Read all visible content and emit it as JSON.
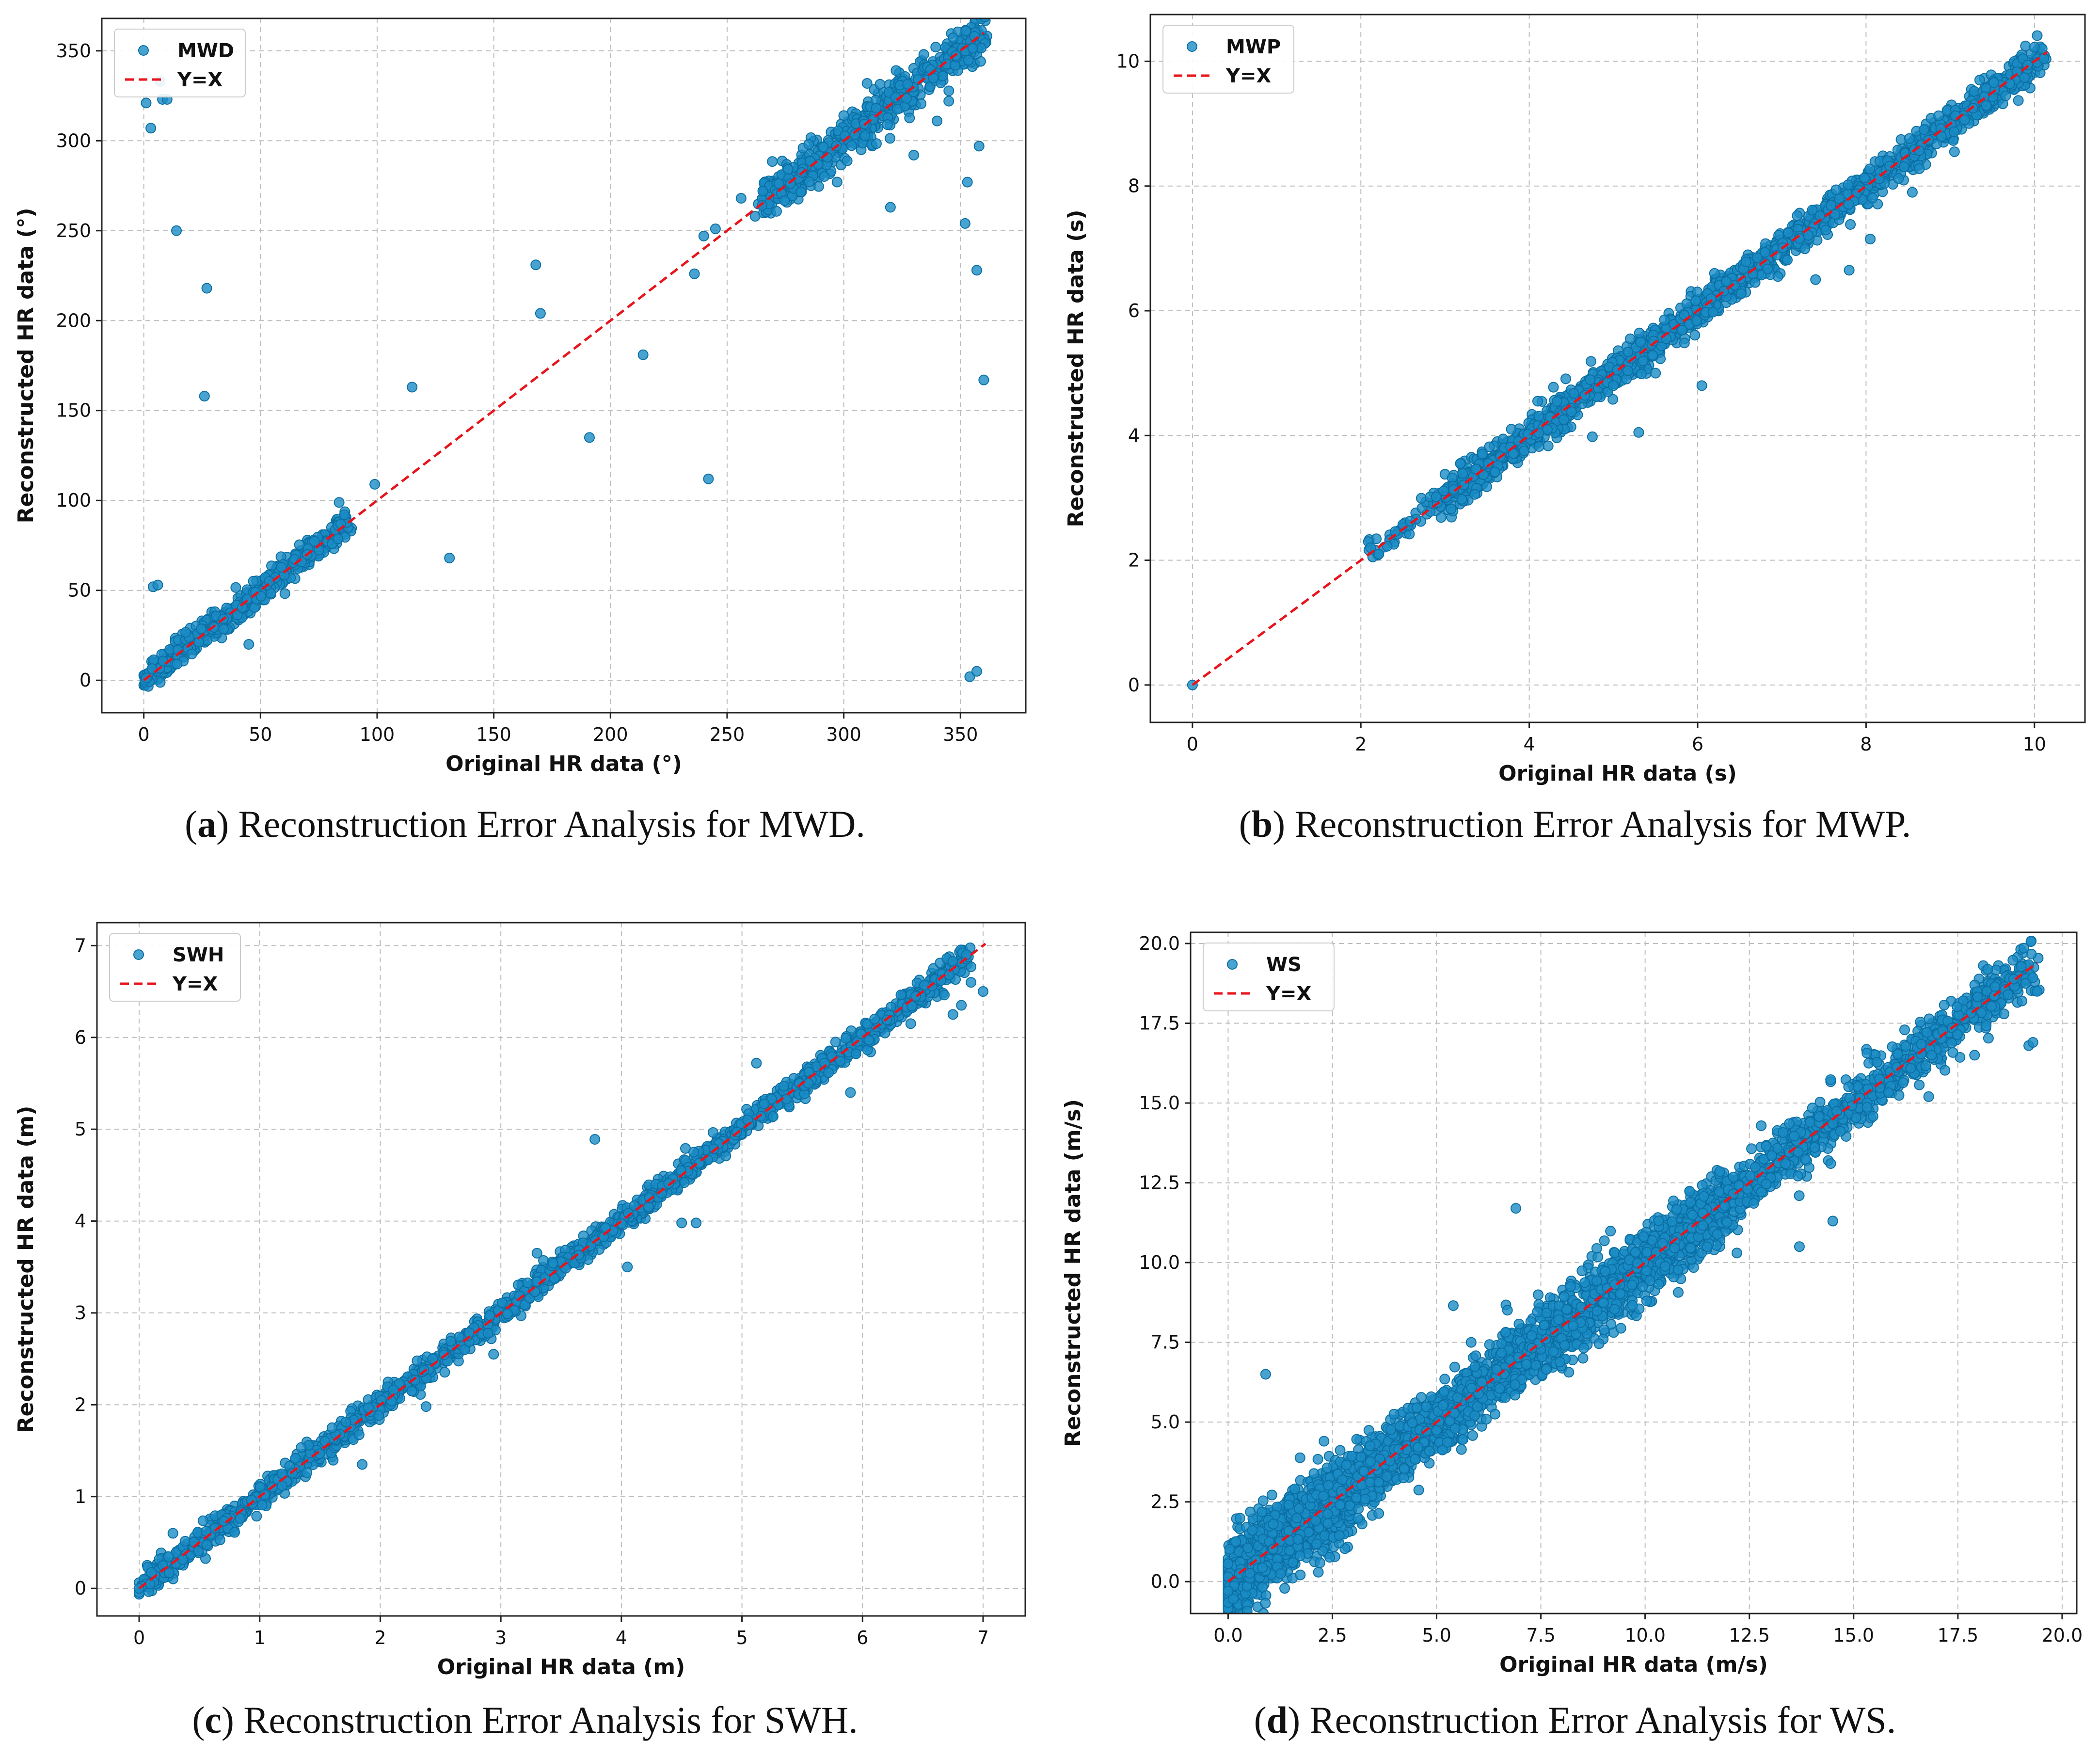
{
  "colors": {
    "point": "#1a8cc6",
    "point_edge": "#0b6fa3",
    "identity": "#e8141c",
    "grid": "#bdbdbd",
    "frame": "#222222"
  },
  "chart_data": [
    {
      "id": "a",
      "type": "scatter",
      "caption": {
        "letter": "a",
        "text": "Reconstruction Error Analysis for MWD."
      },
      "xlabel": "Original HR data (°)",
      "ylabel": "Reconstructed HR data (°)",
      "xlim": [
        -18,
        378
      ],
      "ylim": [
        -18,
        368
      ],
      "xticks": [
        0,
        50,
        100,
        150,
        200,
        250,
        300,
        350
      ],
      "yticks": [
        0,
        50,
        100,
        150,
        200,
        250,
        300,
        350
      ],
      "tick_labels_x": [
        "0",
        "50",
        "100",
        "150",
        "200",
        "250",
        "300",
        "350"
      ],
      "tick_labels_y": [
        "0",
        "50",
        "100",
        "150",
        "200",
        "250",
        "300",
        "350"
      ],
      "legend": [
        "MWD",
        "Y=X"
      ],
      "identity_line": [
        0,
        360
      ],
      "clusters": [
        {
          "from": 0,
          "to": 88,
          "spread": 3.5,
          "n": 520
        },
        {
          "from": 265,
          "to": 360,
          "spread": 6,
          "n": 600
        }
      ],
      "points": [
        [
          1,
          321
        ],
        [
          3,
          307
        ],
        [
          7,
          333
        ],
        [
          8,
          323
        ],
        [
          10,
          323
        ],
        [
          14,
          250
        ],
        [
          27,
          218
        ],
        [
          26,
          158
        ],
        [
          4,
          52
        ],
        [
          6,
          53
        ],
        [
          99,
          109
        ],
        [
          115,
          163
        ],
        [
          131,
          68
        ],
        [
          168,
          231
        ],
        [
          170,
          204
        ],
        [
          191,
          135
        ],
        [
          214,
          181
        ],
        [
          242,
          112
        ],
        [
          245,
          251
        ],
        [
          240,
          247
        ],
        [
          236,
          226
        ],
        [
          256,
          268
        ],
        [
          262,
          258
        ],
        [
          265,
          264
        ],
        [
          320,
          263
        ],
        [
          353,
          277
        ],
        [
          358,
          297
        ],
        [
          360,
          167
        ],
        [
          357,
          228
        ],
        [
          352,
          254
        ],
        [
          354,
          2
        ],
        [
          357,
          5
        ],
        [
          285,
          298
        ],
        [
          340,
          311
        ],
        [
          345,
          322
        ],
        [
          330,
          292
        ],
        [
          300,
          314
        ],
        [
          45,
          20
        ],
        [
          70,
          70
        ],
        [
          86,
          92
        ]
      ]
    },
    {
      "id": "b",
      "type": "scatter",
      "caption": {
        "letter": "b",
        "text": "Reconstruction Error Analysis for MWP."
      },
      "xlabel": "Original HR data (s)",
      "ylabel": "Reconstructed HR data (s)",
      "xlim": [
        -0.5,
        10.6
      ],
      "ylim": [
        -0.6,
        10.75
      ],
      "xticks": [
        0,
        2,
        4,
        6,
        8,
        10
      ],
      "yticks": [
        0,
        2,
        4,
        6,
        8,
        10
      ],
      "tick_labels_x": [
        "0",
        "2",
        "4",
        "6",
        "8",
        "10"
      ],
      "tick_labels_y": [
        "0",
        "2",
        "4",
        "6",
        "8",
        "10"
      ],
      "legend": [
        "MWP",
        "Y=X"
      ],
      "identity_line": [
        0,
        10.15
      ],
      "clusters": [
        {
          "from": 2.1,
          "to": 3.0,
          "spread": 0.12,
          "n": 60
        },
        {
          "from": 3.0,
          "to": 10.1,
          "spread": 0.13,
          "n": 1700
        }
      ],
      "points": [
        [
          0,
          0
        ],
        [
          5.0,
          4.8
        ],
        [
          5.3,
          4.05
        ],
        [
          4.75,
          3.98
        ],
        [
          6.05,
          4.8
        ],
        [
          5.5,
          5.0
        ],
        [
          7.4,
          6.5
        ],
        [
          8.05,
          7.15
        ],
        [
          7.8,
          6.65
        ],
        [
          9.05,
          8.55
        ],
        [
          8.55,
          7.9
        ],
        [
          9.35,
          9.7
        ],
        [
          6.2,
          6.6
        ],
        [
          4.1,
          4.55
        ],
        [
          5.2,
          5.55
        ]
      ]
    },
    {
      "id": "c",
      "type": "scatter",
      "caption": {
        "letter": "c",
        "text": "Reconstruction Error Analysis for SWH."
      },
      "xlabel": "Original HR data (m)",
      "ylabel": "Reconstructed HR data (m)",
      "xlim": [
        -0.35,
        7.35
      ],
      "ylim": [
        -0.3,
        7.25
      ],
      "xticks": [
        0,
        1,
        2,
        3,
        4,
        5,
        6,
        7
      ],
      "yticks": [
        0,
        1,
        2,
        3,
        4,
        5,
        6,
        7
      ],
      "tick_labels_x": [
        "0",
        "1",
        "2",
        "3",
        "4",
        "5",
        "6",
        "7"
      ],
      "tick_labels_y": [
        "0",
        "1",
        "2",
        "3",
        "4",
        "5",
        "6",
        "7"
      ],
      "legend": [
        "SWH",
        "Y=X"
      ],
      "identity_line": [
        0,
        7.02
      ],
      "clusters": [
        {
          "from": 0.0,
          "to": 6.9,
          "spread": 0.07,
          "n": 1700
        }
      ],
      "points": [
        [
          0,
          0
        ],
        [
          0.28,
          0.6
        ],
        [
          1.85,
          1.35
        ],
        [
          2.38,
          1.98
        ],
        [
          2.94,
          2.55
        ],
        [
          3.78,
          4.89
        ],
        [
          4.05,
          3.5
        ],
        [
          4.5,
          3.98
        ],
        [
          4.62,
          3.98
        ],
        [
          4.6,
          4.75
        ],
        [
          5.12,
          5.72
        ],
        [
          5.55,
          5.5
        ],
        [
          5.9,
          5.4
        ],
        [
          6.1,
          6.2
        ],
        [
          6.4,
          6.15
        ],
        [
          6.75,
          6.25
        ],
        [
          6.82,
          6.35
        ],
        [
          7.0,
          6.5
        ],
        [
          6.65,
          6.62
        ],
        [
          6.9,
          6.6
        ],
        [
          1.6,
          1.75
        ],
        [
          3.3,
          3.65
        ]
      ]
    },
    {
      "id": "d",
      "type": "scatter",
      "caption": {
        "letter": "d",
        "text": "Reconstruction Error Analysis for WS."
      },
      "xlabel": "Original HR data (m/s)",
      "ylabel": "Reconstructed HR data (m/s)",
      "xlim": [
        -0.9,
        20.35
      ],
      "ylim": [
        -1.0,
        20.35
      ],
      "xticks": [
        0.0,
        2.5,
        5.0,
        7.5,
        10.0,
        12.5,
        15.0,
        17.5,
        20.0
      ],
      "yticks": [
        0.0,
        2.5,
        5.0,
        7.5,
        10.0,
        12.5,
        15.0,
        17.5,
        20.0
      ],
      "tick_labels_x": [
        "0.0",
        "2.5",
        "5.0",
        "7.5",
        "10.0",
        "12.5",
        "15.0",
        "17.5",
        "20.0"
      ],
      "tick_labels_y": [
        "0.0",
        "2.5",
        "5.0",
        "7.5",
        "10.0",
        "12.5",
        "15.0",
        "17.5",
        "20.0"
      ],
      "legend": [
        "WS",
        "Y=X"
      ],
      "identity_line": [
        0,
        19.4
      ],
      "clusters": [
        {
          "from": 0.0,
          "to": 3.0,
          "spread": 0.55,
          "n": 1400
        },
        {
          "from": 3.0,
          "to": 12.0,
          "spread": 0.5,
          "n": 2200
        },
        {
          "from": 12.0,
          "to": 19.3,
          "spread": 0.4,
          "n": 900
        }
      ],
      "points": [
        [
          0.9,
          6.5
        ],
        [
          5.4,
          8.65
        ],
        [
          6.9,
          11.7
        ],
        [
          13.7,
          10.5
        ],
        [
          14.5,
          11.3
        ],
        [
          19.2,
          16.8
        ],
        [
          19.3,
          16.9
        ],
        [
          19.4,
          18.5
        ],
        [
          12.2,
          10.3
        ],
        [
          16.8,
          15.2
        ],
        [
          17.9,
          16.5
        ],
        [
          2.3,
          4.4
        ]
      ]
    }
  ]
}
